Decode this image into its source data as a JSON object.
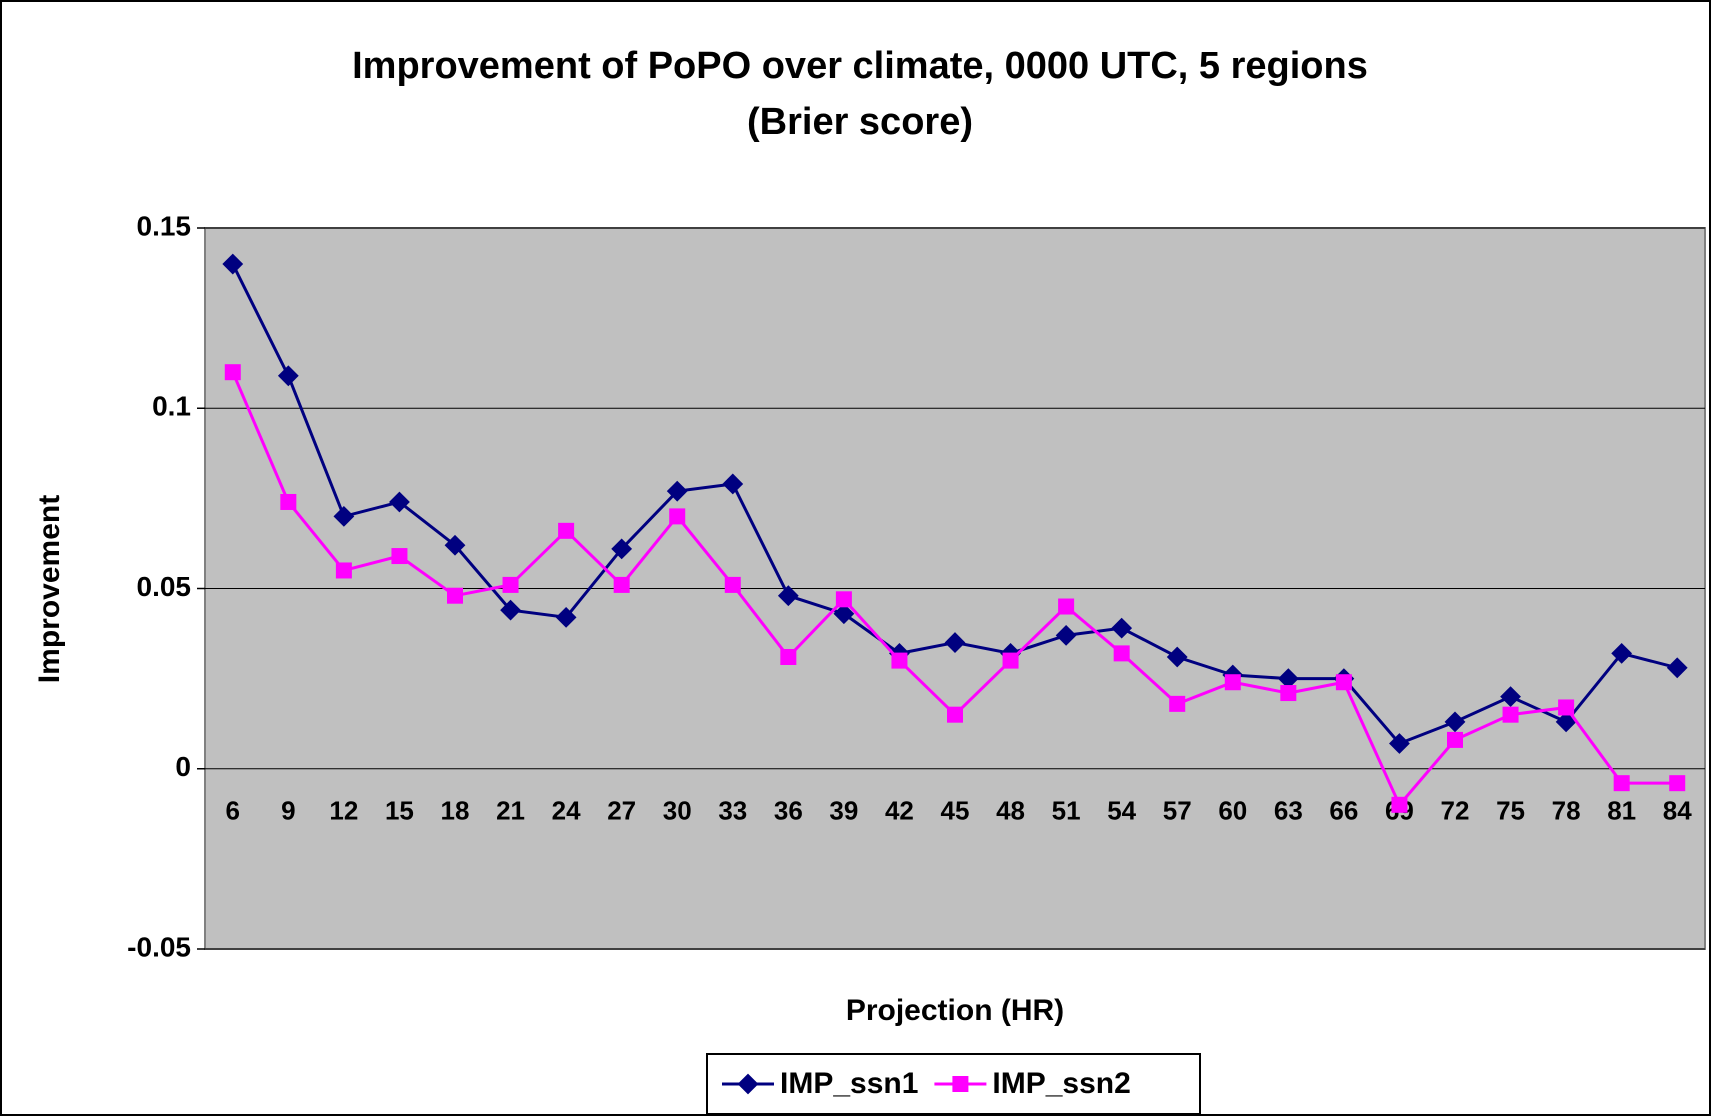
{
  "chart_data": {
    "type": "line",
    "title": "Improvement of PoPO over climate, 0000 UTC, 5 regions",
    "subtitle": "(Brier score)",
    "x_label": "Projection (HR)",
    "y_label": "Improvement",
    "categories": [
      6,
      9,
      12,
      15,
      18,
      21,
      24,
      27,
      30,
      33,
      36,
      39,
      42,
      45,
      48,
      51,
      54,
      57,
      60,
      63,
      66,
      69,
      72,
      75,
      78,
      81,
      84
    ],
    "series": [
      {
        "name": "IMP_ssn1",
        "color": "#000080",
        "marker": "diamond",
        "values": [
          0.14,
          0.109,
          0.07,
          0.074,
          0.062,
          0.044,
          0.042,
          0.061,
          0.077,
          0.079,
          0.048,
          0.043,
          0.032,
          0.035,
          0.032,
          0.037,
          0.039,
          0.031,
          0.026,
          0.025,
          0.025,
          0.007,
          0.013,
          0.02,
          0.013,
          0.032,
          0.028
        ]
      },
      {
        "name": "IMP_ssn2",
        "color": "#ff00ff",
        "marker": "square",
        "values": [
          0.11,
          0.074,
          0.055,
          0.059,
          0.048,
          0.051,
          0.066,
          0.051,
          0.07,
          0.051,
          0.031,
          0.047,
          0.03,
          0.015,
          0.03,
          0.045,
          0.032,
          0.018,
          0.024,
          0.021,
          0.024,
          -0.01,
          0.008,
          0.015,
          0.017,
          -0.004,
          -0.004
        ]
      }
    ],
    "ylim": [
      -0.05,
      0.15
    ],
    "yticks": [
      -0.05,
      0,
      0.05,
      0.1,
      0.15
    ],
    "grid": true,
    "legend": "bottom"
  }
}
